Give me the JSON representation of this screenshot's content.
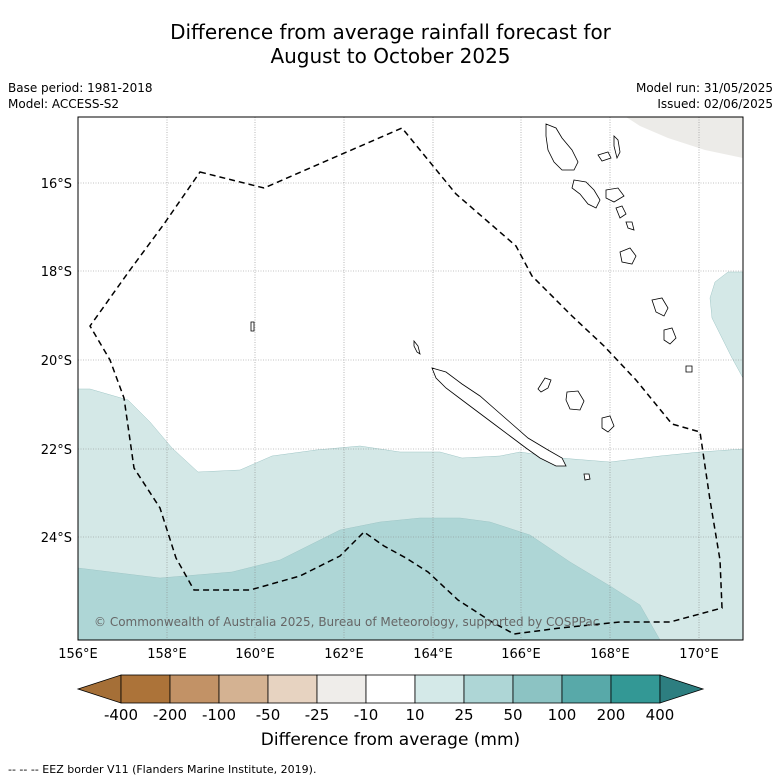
{
  "header": {
    "title_line1": "Difference from average rainfall forecast for",
    "title_line2": "August to October 2025",
    "base_period": "Base period: 1981-2018",
    "model": "Model: ACCESS-S2",
    "model_run": "Model run: 31/05/2025",
    "issued": "Issued: 02/06/2025"
  },
  "map": {
    "lat_ticks": [
      "16°S",
      "18°S",
      "20°S",
      "22°S",
      "24°S"
    ],
    "lon_ticks": [
      "156°E",
      "158°E",
      "160°E",
      "162°E",
      "164°E",
      "166°E",
      "168°E",
      "170°E"
    ],
    "copyright": "© Commonwealth of Australia 2025, Bureau of Meteorology, supported by COSPPac",
    "colors": {
      "c_neg25_neg10": "#ecebe8",
      "c_10_25": "#d4e8e7",
      "c_25_50": "#aed6d6"
    }
  },
  "colorbar": {
    "tick_labels": [
      "-400",
      "-200",
      "-100",
      "-50",
      "-25",
      "-10",
      "10",
      "25",
      "50",
      "100",
      "200",
      "400"
    ],
    "colors": [
      "#ac7339",
      "#c29266",
      "#d4b292",
      "#e7d3c1",
      "#efedea",
      "#ffffff",
      "#d4e9e8",
      "#aed6d6",
      "#8cc3c3",
      "#58a9a9",
      "#339895"
    ],
    "low_color": "#a56f37",
    "high_color": "#2d7e80",
    "label": "Difference from average (mm)"
  },
  "footer": {
    "legend": "--  --  -- EEZ border V11 (Flanders Marine Institute, 2019)."
  }
}
